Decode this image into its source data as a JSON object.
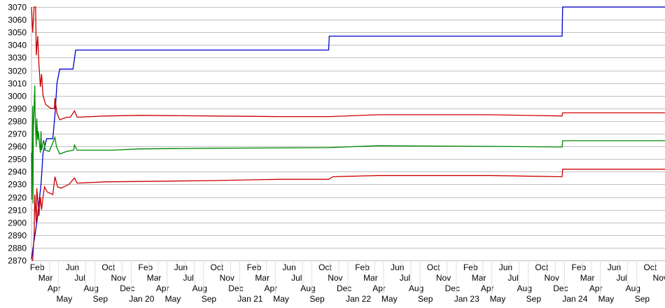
{
  "chart_data": {
    "type": "line",
    "title": "",
    "xlabel": "",
    "ylabel": "",
    "ylim": [
      2870,
      3070
    ],
    "xlim": [
      "2019-01-30",
      "2024-12-05"
    ],
    "grid": {
      "horizontal": true,
      "vertical": false,
      "color": "#c0c0c0"
    },
    "y_ticks": [
      2870,
      2880,
      2890,
      2900,
      2910,
      2920,
      2930,
      2940,
      2950,
      2960,
      2970,
      2980,
      2990,
      3000,
      3010,
      3020,
      3030,
      3040,
      3050,
      3060,
      3070
    ],
    "x_ticks": {
      "start_month": "2019-02",
      "labels": [
        "Feb",
        "Mar",
        "Apr",
        "May",
        "Jun",
        "Jul",
        "Aug",
        "Sep",
        "Oct",
        "Nov",
        "Dec",
        "Jan 20",
        "Feb",
        "Mar",
        "Apr",
        "May",
        "Jun",
        "Jul",
        "Aug",
        "Sep",
        "Oct",
        "Nov",
        "Dec",
        "Jan 21",
        "Feb",
        "Mar",
        "Apr",
        "May",
        "Jun",
        "Jul",
        "Aug",
        "Sep",
        "Oct",
        "Nov",
        "Dec",
        "Jan 22",
        "Feb",
        "Mar",
        "Apr",
        "May",
        "Jun",
        "Jul",
        "Aug",
        "Sep",
        "Oct",
        "Nov",
        "Dec",
        "Jan 23",
        "Feb",
        "Mar",
        "Apr",
        "May",
        "Jun",
        "Jul",
        "Aug",
        "Sep",
        "Oct",
        "Nov",
        "Dec",
        "Jan 24",
        "Feb",
        "Mar",
        "Apr",
        "May",
        "Jun",
        "Jul",
        "Aug",
        "Sep",
        "Oct",
        "Nov"
      ]
    },
    "series": [
      {
        "color": "#0000cc",
        "step": true,
        "points": [
          [
            "2019-01-30",
            2871
          ],
          [
            "2019-02-03",
            2878
          ],
          [
            "2019-02-17",
            2900
          ],
          [
            "2019-03-03",
            2930
          ],
          [
            "2019-03-10",
            2955
          ],
          [
            "2019-03-22",
            2966
          ],
          [
            "2019-04-12",
            2966
          ],
          [
            "2019-04-19",
            2985
          ],
          [
            "2019-04-26",
            3010
          ],
          [
            "2019-05-05",
            3021
          ],
          [
            "2019-06-19",
            3021
          ],
          [
            "2019-06-28",
            3036
          ],
          [
            "2021-10-28",
            3036
          ],
          [
            "2021-10-30",
            3047
          ],
          [
            "2023-12-24",
            3047
          ],
          [
            "2023-12-25",
            3059
          ],
          [
            "2023-12-26",
            3070
          ],
          [
            "2024-12-05",
            3070
          ]
        ]
      },
      {
        "color": "#cc0000",
        "points": [
          [
            "2019-01-30",
            3070
          ],
          [
            "2019-02-03",
            3050
          ],
          [
            "2019-02-08",
            3070
          ],
          [
            "2019-02-13",
            3070
          ],
          [
            "2019-02-15",
            3032
          ],
          [
            "2019-02-20",
            3047
          ],
          [
            "2019-02-24",
            3025
          ],
          [
            "2019-03-01",
            3007
          ],
          [
            "2019-03-05",
            3017
          ],
          [
            "2019-03-10",
            3000
          ],
          [
            "2019-03-19",
            2993
          ],
          [
            "2019-04-05",
            2990
          ],
          [
            "2019-04-17",
            2990
          ],
          [
            "2019-04-19",
            2998
          ],
          [
            "2019-04-26",
            2986
          ],
          [
            "2019-05-05",
            2981
          ],
          [
            "2019-05-29",
            2983
          ],
          [
            "2019-06-10",
            2983
          ],
          [
            "2019-06-24",
            2988
          ],
          [
            "2019-07-03",
            2983
          ],
          [
            "2019-10-06",
            2984
          ],
          [
            "2020-02-02",
            2984.5
          ],
          [
            "2020-09-24",
            2984
          ],
          [
            "2021-05-17",
            2983.5
          ],
          [
            "2021-10-28",
            2983.5
          ],
          [
            "2022-04-14",
            2985
          ],
          [
            "2023-04-23",
            2985
          ],
          [
            "2023-12-24",
            2984
          ],
          [
            "2023-12-26",
            2986.5
          ],
          [
            "2024-12-05",
            2986.5
          ]
        ]
      },
      {
        "color": "#008800",
        "points": [
          [
            "2019-01-30",
            2955
          ],
          [
            "2019-01-31",
            2918
          ],
          [
            "2019-02-03",
            2992
          ],
          [
            "2019-02-04",
            2915
          ],
          [
            "2019-02-05",
            2970
          ],
          [
            "2019-02-10",
            3008
          ],
          [
            "2019-02-11",
            2987
          ],
          [
            "2019-02-15",
            2960
          ],
          [
            "2019-02-17",
            2982
          ],
          [
            "2019-02-20",
            2965
          ],
          [
            "2019-02-22",
            2972
          ],
          [
            "2019-03-01",
            2955
          ],
          [
            "2019-03-03",
            2972
          ],
          [
            "2019-03-05",
            2957
          ],
          [
            "2019-03-12",
            2965
          ],
          [
            "2019-03-17",
            2957
          ],
          [
            "2019-03-31",
            2956
          ],
          [
            "2019-04-19",
            2967
          ],
          [
            "2019-04-24",
            2960
          ],
          [
            "2019-05-05",
            2954
          ],
          [
            "2019-05-29",
            2956
          ],
          [
            "2019-06-21",
            2957
          ],
          [
            "2019-06-24",
            2961
          ],
          [
            "2019-07-03",
            2957
          ],
          [
            "2019-10-29",
            2957
          ],
          [
            "2020-02-02",
            2958
          ],
          [
            "2020-09-24",
            2958.5
          ],
          [
            "2021-10-28",
            2959
          ],
          [
            "2022-04-14",
            2960.5
          ],
          [
            "2023-04-23",
            2960
          ],
          [
            "2023-12-24",
            2959.5
          ],
          [
            "2023-12-26",
            2964.5
          ],
          [
            "2024-12-05",
            2964.5
          ]
        ]
      },
      {
        "color": "#cc0000",
        "points": [
          [
            "2019-01-30",
            2870
          ],
          [
            "2019-02-03",
            2870
          ],
          [
            "2019-02-08",
            2890
          ],
          [
            "2019-02-10",
            2922
          ],
          [
            "2019-02-15",
            2900
          ],
          [
            "2019-02-17",
            2927
          ],
          [
            "2019-02-24",
            2905
          ],
          [
            "2019-03-01",
            2920
          ],
          [
            "2019-03-05",
            2910
          ],
          [
            "2019-03-10",
            2920
          ],
          [
            "2019-03-15",
            2928
          ],
          [
            "2019-03-24",
            2924
          ],
          [
            "2019-04-12",
            2922
          ],
          [
            "2019-04-19",
            2936
          ],
          [
            "2019-04-28",
            2928
          ],
          [
            "2019-05-10",
            2927
          ],
          [
            "2019-06-05",
            2930
          ],
          [
            "2019-06-24",
            2935
          ],
          [
            "2019-07-03",
            2931
          ],
          [
            "2019-10-06",
            2932
          ],
          [
            "2020-09-24",
            2933
          ],
          [
            "2021-05-17",
            2934
          ],
          [
            "2021-10-28",
            2934
          ],
          [
            "2021-11-11",
            2936
          ],
          [
            "2022-04-14",
            2937
          ],
          [
            "2023-04-23",
            2937
          ],
          [
            "2023-12-24",
            2936
          ],
          [
            "2023-12-26",
            2942
          ],
          [
            "2024-12-05",
            2942
          ]
        ]
      }
    ]
  }
}
